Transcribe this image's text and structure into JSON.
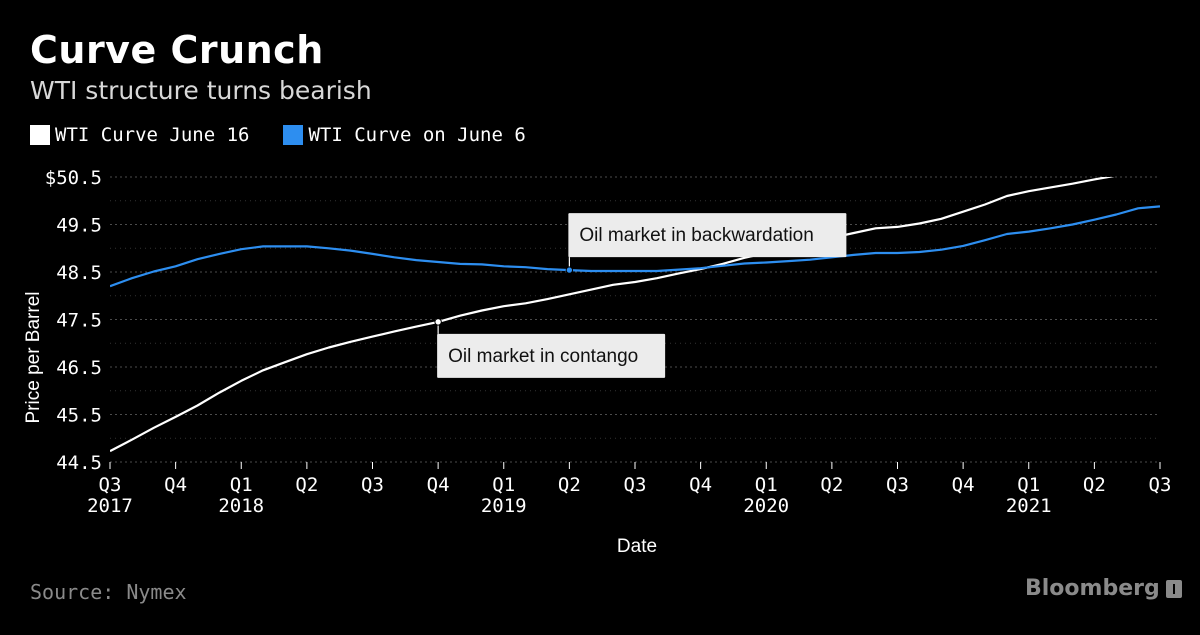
{
  "header": {
    "title": "Curve Crunch",
    "subtitle": "WTI structure turns bearish"
  },
  "footer": {
    "source": "Source: Nymex",
    "brand": "Bloomberg"
  },
  "colors": {
    "background": "#000000",
    "series_june16": "#ffffff",
    "series_june6": "#2d8ef0",
    "grid": "#555555"
  },
  "chart_data": {
    "type": "line",
    "xlabel": "Date",
    "ylabel": "Price per Barrel",
    "ylim": [
      44.5,
      50.5
    ],
    "yticks": [
      "$50.5",
      "49.5",
      "48.5",
      "47.5",
      "46.5",
      "45.5",
      "44.5"
    ],
    "ytick_values": [
      50.5,
      49.5,
      48.5,
      47.5,
      46.5,
      45.5,
      44.5
    ],
    "grid": true,
    "legend_position": "top-left",
    "x_ticks": [
      {
        "q": "Q3",
        "year": "2017"
      },
      {
        "q": "Q4",
        "year": ""
      },
      {
        "q": "Q1",
        "year": "2018"
      },
      {
        "q": "Q2",
        "year": ""
      },
      {
        "q": "Q3",
        "year": ""
      },
      {
        "q": "Q4",
        "year": ""
      },
      {
        "q": "Q1",
        "year": "2019"
      },
      {
        "q": "Q2",
        "year": ""
      },
      {
        "q": "Q3",
        "year": ""
      },
      {
        "q": "Q4",
        "year": ""
      },
      {
        "q": "Q1",
        "year": "2020"
      },
      {
        "q": "Q2",
        "year": ""
      },
      {
        "q": "Q3",
        "year": ""
      },
      {
        "q": "Q4",
        "year": ""
      },
      {
        "q": "Q1",
        "year": "2021"
      },
      {
        "q": "Q2",
        "year": ""
      },
      {
        "q": "Q3",
        "year": ""
      }
    ],
    "series": [
      {
        "name": "WTI Curve June 16",
        "color": "#ffffff",
        "x": [
          "2017-07",
          "2017-08",
          "2017-09",
          "2017-10",
          "2017-11",
          "2017-12",
          "2018-01",
          "2018-02",
          "2018-03",
          "2018-04",
          "2018-05",
          "2018-06",
          "2018-07",
          "2018-08",
          "2018-09",
          "2018-10",
          "2018-11",
          "2018-12",
          "2019-01",
          "2019-02",
          "2019-03",
          "2019-04",
          "2019-05",
          "2019-06",
          "2019-07",
          "2019-08",
          "2019-09",
          "2019-10",
          "2019-11",
          "2019-12",
          "2020-01",
          "2020-02",
          "2020-03",
          "2020-04",
          "2020-05",
          "2020-06",
          "2020-07",
          "2020-08",
          "2020-09",
          "2020-10",
          "2020-11",
          "2020-12",
          "2021-01",
          "2021-02",
          "2021-03",
          "2021-04",
          "2021-05"
        ],
        "values": [
          44.73,
          44.97,
          45.22,
          45.45,
          45.69,
          45.96,
          46.21,
          46.43,
          46.6,
          46.77,
          46.91,
          47.03,
          47.14,
          47.25,
          47.35,
          47.45,
          47.58,
          47.69,
          47.78,
          47.84,
          47.93,
          48.03,
          48.13,
          48.23,
          48.29,
          48.37,
          48.47,
          48.56,
          48.67,
          48.8,
          48.9,
          49.0,
          49.11,
          49.22,
          49.32,
          49.42,
          49.45,
          49.52,
          49.62,
          49.77,
          49.92,
          50.1,
          50.2,
          50.28,
          50.36,
          50.45,
          50.53
        ]
      },
      {
        "name": "WTI Curve on June 6",
        "color": "#2d8ef0",
        "x": [
          "2017-07",
          "2017-08",
          "2017-09",
          "2017-10",
          "2017-11",
          "2017-12",
          "2018-01",
          "2018-02",
          "2018-03",
          "2018-04",
          "2018-05",
          "2018-06",
          "2018-07",
          "2018-08",
          "2018-09",
          "2018-10",
          "2018-11",
          "2018-12",
          "2019-01",
          "2019-02",
          "2019-03",
          "2019-04",
          "2019-05",
          "2019-06",
          "2019-07",
          "2019-08",
          "2019-09",
          "2019-10",
          "2019-11",
          "2019-12",
          "2020-01",
          "2020-02",
          "2020-03",
          "2020-04",
          "2020-05",
          "2020-06",
          "2020-07",
          "2020-08",
          "2020-09",
          "2020-10",
          "2020-11",
          "2020-12",
          "2021-01",
          "2021-02",
          "2021-03",
          "2021-04",
          "2021-05",
          "2021-06",
          "2021-07"
        ],
        "values": [
          48.2,
          48.37,
          48.51,
          48.62,
          48.77,
          48.88,
          48.98,
          49.04,
          49.04,
          49.04,
          49.0,
          48.95,
          48.88,
          48.81,
          48.75,
          48.71,
          48.67,
          48.66,
          48.62,
          48.6,
          48.56,
          48.54,
          48.52,
          48.52,
          48.52,
          48.52,
          48.55,
          48.58,
          48.63,
          48.68,
          48.7,
          48.73,
          48.76,
          48.81,
          48.86,
          48.9,
          48.9,
          48.92,
          48.97,
          49.05,
          49.17,
          49.3,
          49.35,
          49.42,
          49.5,
          49.6,
          49.71,
          49.84,
          49.88
        ]
      }
    ],
    "annotations": [
      {
        "text": "Oil market in backwardation",
        "x": "2019-04",
        "series": 1
      },
      {
        "text": "Oil market in contango",
        "x": "2018-10",
        "series": 0
      }
    ]
  }
}
